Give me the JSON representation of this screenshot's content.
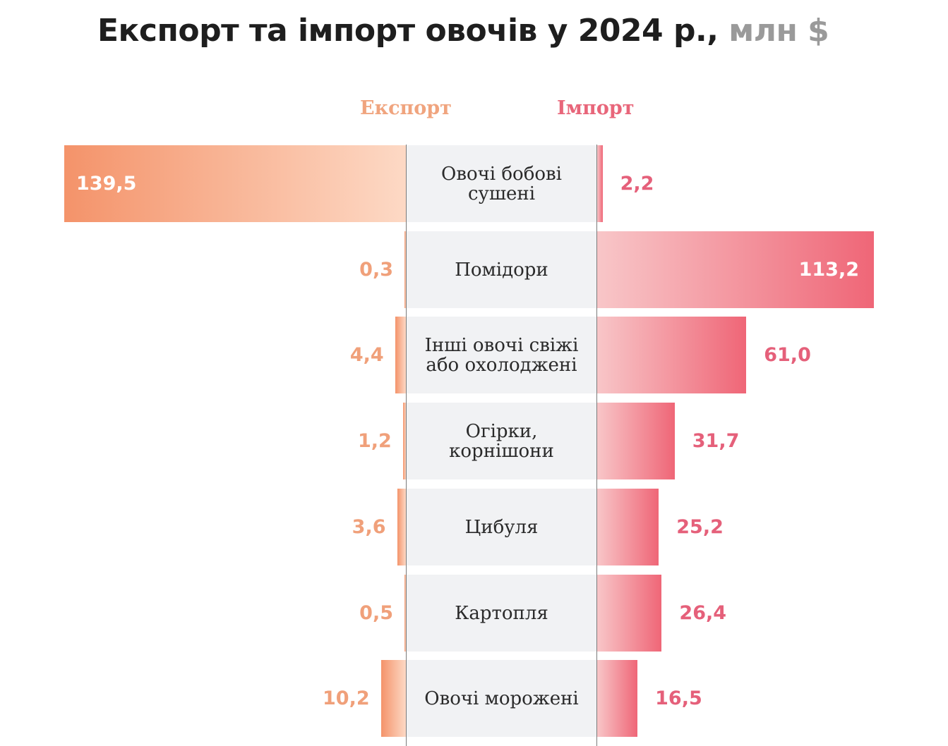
{
  "header": {
    "title_main": "Експорт та імпорт овочів у 2024 р.,",
    "title_unit": "млн $",
    "export_label": "Експорт",
    "import_label": "Імпорт"
  },
  "colors": {
    "export_dark": "#f4936a",
    "export_light": "#fdd9c5",
    "import_light": "#f8c6c8",
    "import_dark": "#ef6677",
    "category_bg": "#f1f2f4"
  },
  "chart_data": {
    "type": "bar",
    "orientation": "horizontal-diverging",
    "title": "Експорт та імпорт овочів у 2024 р., млн $",
    "categories": [
      [
        "Овочі бобові",
        "сушені"
      ],
      [
        "Помідори"
      ],
      [
        "Інші овочі свіжі",
        "або охолоджені"
      ],
      [
        "Огірки,",
        "корнішони"
      ],
      [
        "Цибуля"
      ],
      [
        "Картопля"
      ],
      [
        "Овочі морожені"
      ]
    ],
    "series": [
      {
        "name": "Експорт",
        "values": [
          139.5,
          0.3,
          4.4,
          1.2,
          3.6,
          0.5,
          10.2
        ],
        "labels": [
          "139,5",
          "0,3",
          "4,4",
          "1,2",
          "3,6",
          "0,5",
          "10,2"
        ]
      },
      {
        "name": "Імпорт",
        "values": [
          2.2,
          113.2,
          61.0,
          31.7,
          25.2,
          26.4,
          16.5
        ],
        "labels": [
          "2,2",
          "113,2",
          "61,0",
          "31,7",
          "25,2",
          "26,4",
          "16,5"
        ]
      }
    ]
  }
}
